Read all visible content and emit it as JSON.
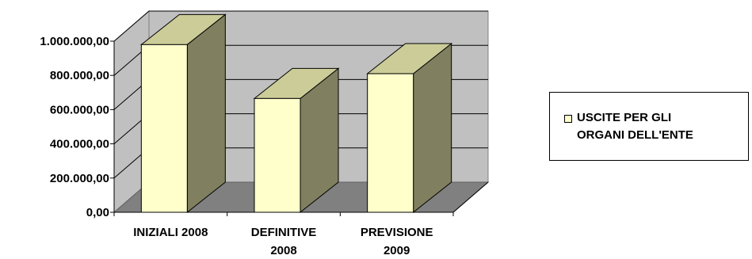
{
  "chart_data": {
    "type": "bar",
    "categories": [
      [
        "INIZIALI 2008"
      ],
      [
        "DEFINITIVE",
        "2008"
      ],
      [
        "PREVISIONE",
        "2009"
      ]
    ],
    "series": [
      {
        "name": "USCITE PER GLI ORGANI DELL'ENTE",
        "values": [
          980000,
          665000,
          810000
        ]
      }
    ],
    "yticks": [
      "0,00",
      "200.000,00",
      "400.000,00",
      "600.000,00",
      "800.000,00",
      "1.000.000,00"
    ],
    "ylim": [
      0,
      1000000
    ],
    "grid": true,
    "legend_position": "right",
    "colors": {
      "bar_front": "#FFFFCC",
      "bar_side": "#808060",
      "bar_top": "#CCCC99",
      "wall": "#C0C0C0",
      "floor": "#808080"
    }
  },
  "legend": {
    "lines": [
      "USCITE PER GLI",
      "ORGANI DELL'ENTE"
    ]
  }
}
